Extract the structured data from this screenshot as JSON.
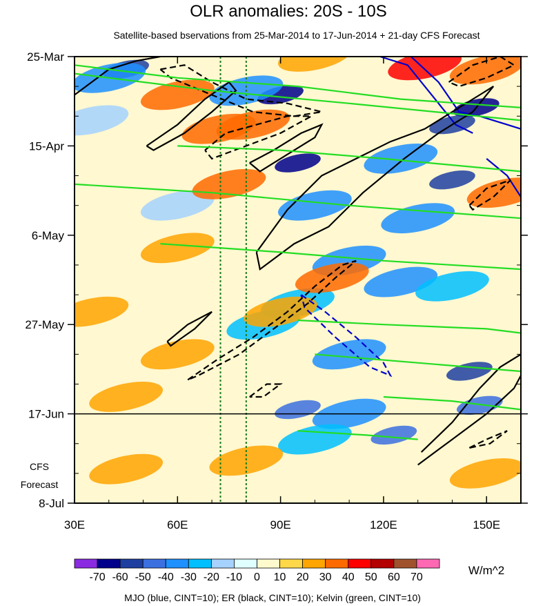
{
  "chart_data": {
    "type": "heatmap",
    "title": "OLR anomalies: 20S - 10S",
    "subtitle": "Satellite-based bservations from 25-Mar-2014 to 17-Jun-2014 + 21-day CFS Forecast",
    "x_ticks": [
      "30E",
      "60E",
      "90E",
      "120E",
      "150E"
    ],
    "x_tick_values": [
      30,
      60,
      90,
      120,
      150
    ],
    "xlim": [
      30,
      160
    ],
    "y_ticks": [
      "25-Mar",
      "15-Apr",
      "6-May",
      "27-May",
      "17-Jun",
      "8-Jul"
    ],
    "y_tick_days": [
      0,
      21,
      42,
      63,
      84,
      105
    ],
    "ylim_days": [
      0,
      105
    ],
    "forecast_label": "CFS\nForecast",
    "forecast_start_day": 84,
    "reference_lines_lon": [
      72.5,
      80
    ],
    "colorbar": {
      "labels": [
        "-70",
        "-60",
        "-50",
        "-40",
        "-30",
        "-20",
        "-10",
        "0",
        "10",
        "20",
        "30",
        "40",
        "50",
        "60",
        "70"
      ],
      "colors": [
        "#8a2be2",
        "#00008b",
        "#1e3fa0",
        "#3c70e0",
        "#1e90ff",
        "#00bfff",
        "#a5d2ff",
        "#e0ffff",
        "#fffacd",
        "#ffd84a",
        "#ffa500",
        "#ff6a00",
        "#ff0000",
        "#b30000",
        "#a0522d",
        "#ff69b4"
      ],
      "units": "W/m^2"
    },
    "cells": [
      {
        "lon": 45,
        "day": 3,
        "v": -60
      },
      {
        "lon": 40,
        "day": 5,
        "v": -40
      },
      {
        "lon": 90,
        "day": 9,
        "v": -70
      },
      {
        "lon": 80,
        "day": 8,
        "v": -40
      },
      {
        "lon": 147,
        "day": 12,
        "v": -70
      },
      {
        "lon": 140,
        "day": 16,
        "v": -60
      },
      {
        "lon": 95,
        "day": 25,
        "v": -70
      },
      {
        "lon": 125,
        "day": 24,
        "v": -40
      },
      {
        "lon": 140,
        "day": 29,
        "v": -60
      },
      {
        "lon": 100,
        "day": 35,
        "v": -40
      },
      {
        "lon": 130,
        "day": 38,
        "v": -40
      },
      {
        "lon": 110,
        "day": 48,
        "v": -40
      },
      {
        "lon": 125,
        "day": 53,
        "v": -40
      },
      {
        "lon": 140,
        "day": 54,
        "v": -30
      },
      {
        "lon": 95,
        "day": 58,
        "v": -30
      },
      {
        "lon": 85,
        "day": 63,
        "v": -30
      },
      {
        "lon": 110,
        "day": 70,
        "v": -40
      },
      {
        "lon": 145,
        "day": 74,
        "v": -60
      },
      {
        "lon": 95,
        "day": 83,
        "v": -50
      },
      {
        "lon": 110,
        "day": 84,
        "v": -40
      },
      {
        "lon": 148,
        "day": 82,
        "v": -50
      },
      {
        "lon": 123,
        "day": 89,
        "v": -50
      },
      {
        "lon": 100,
        "day": 90,
        "v": -30
      },
      {
        "lon": 60,
        "day": 35,
        "v": -20
      },
      {
        "lon": 35,
        "day": 15,
        "v": -20
      },
      {
        "lon": 132,
        "day": 2,
        "v": 40
      },
      {
        "lon": 150,
        "day": 3,
        "v": 30
      },
      {
        "lon": 82,
        "day": 16,
        "v": 30
      },
      {
        "lon": 72,
        "day": 17,
        "v": 30
      },
      {
        "lon": 60,
        "day": 9,
        "v": 30
      },
      {
        "lon": 75,
        "day": 30,
        "v": 30
      },
      {
        "lon": 155,
        "day": 32,
        "v": 30
      },
      {
        "lon": 100,
        "day": 0,
        "v": 20
      },
      {
        "lon": 60,
        "day": 45,
        "v": 20
      },
      {
        "lon": 105,
        "day": 52,
        "v": 30
      },
      {
        "lon": 90,
        "day": 60,
        "v": 20
      },
      {
        "lon": 60,
        "day": 70,
        "v": 20
      },
      {
        "lon": 45,
        "day": 80,
        "v": 20
      },
      {
        "lon": 150,
        "day": 98,
        "v": 20
      },
      {
        "lon": 45,
        "day": 97,
        "v": 20
      },
      {
        "lon": 80,
        "day": 95,
        "v": 20
      },
      {
        "lon": 35,
        "day": 60,
        "v": 20
      }
    ],
    "contours": [
      {
        "series": "MJO",
        "color": "#0000cc",
        "dashed": false,
        "points": [
          [
            119,
            0
          ],
          [
            127,
            2
          ],
          [
            135,
            10
          ],
          [
            141,
            16
          ],
          [
            146,
            18
          ]
        ]
      },
      {
        "series": "MJO",
        "color": "#0000cc",
        "dashed": false,
        "points": [
          [
            128,
            0
          ],
          [
            136,
            6
          ],
          [
            142,
            13
          ],
          [
            148,
            14
          ],
          [
            156,
            16
          ],
          [
            160,
            17
          ]
        ]
      },
      {
        "series": "MJO",
        "color": "#0000cc",
        "dashed": false,
        "points": [
          [
            150,
            24
          ],
          [
            156,
            28
          ],
          [
            160,
            33
          ]
        ]
      },
      {
        "series": "MJO",
        "color": "#0000cc",
        "dashed": true,
        "points": [
          [
            96,
            56
          ],
          [
            103,
            60
          ],
          [
            112,
            66
          ],
          [
            120,
            72
          ],
          [
            122,
            75
          ],
          [
            116,
            73
          ],
          [
            106,
            66
          ],
          [
            97,
            59
          ],
          [
            96,
            56
          ]
        ]
      },
      {
        "series": "ER",
        "color": "#000000",
        "dashed": false,
        "points": [
          [
            30,
            9
          ],
          [
            40,
            3
          ],
          [
            48,
            1
          ],
          [
            55,
            0
          ]
        ]
      },
      {
        "series": "ER",
        "color": "#000000",
        "dashed": false,
        "points": [
          [
            51,
            21
          ],
          [
            60,
            16
          ],
          [
            68,
            10
          ],
          [
            75,
            6
          ],
          [
            77,
            8
          ],
          [
            70,
            13
          ],
          [
            62,
            18
          ],
          [
            53,
            22
          ],
          [
            51,
            21
          ]
        ]
      },
      {
        "series": "ER",
        "color": "#000000",
        "dashed": false,
        "points": [
          [
            81,
            25
          ],
          [
            88,
            22
          ],
          [
            96,
            18
          ],
          [
            102,
            16
          ],
          [
            100,
            19
          ],
          [
            92,
            23
          ],
          [
            84,
            27
          ],
          [
            81,
            25
          ]
        ]
      },
      {
        "series": "ER",
        "color": "#000000",
        "dashed": false,
        "points": [
          [
            83,
            46
          ],
          [
            92,
            36
          ],
          [
            102,
            28
          ],
          [
            112,
            24
          ],
          [
            122,
            20
          ],
          [
            132,
            17
          ],
          [
            140,
            13
          ],
          [
            148,
            9
          ],
          [
            152,
            7
          ],
          [
            146,
            13
          ],
          [
            136,
            18
          ],
          [
            126,
            24
          ],
          [
            114,
            32
          ],
          [
            104,
            40
          ],
          [
            94,
            44
          ],
          [
            84,
            50
          ],
          [
            83,
            46
          ]
        ]
      },
      {
        "series": "ER",
        "color": "#000000",
        "dashed": false,
        "points": [
          [
            57,
            67
          ],
          [
            63,
            63
          ],
          [
            70,
            60
          ],
          [
            65,
            64
          ],
          [
            58,
            68
          ],
          [
            57,
            67
          ]
        ]
      },
      {
        "series": "ER",
        "color": "#000000",
        "dashed": false,
        "points": [
          [
            131,
            93
          ],
          [
            140,
            86
          ],
          [
            148,
            78
          ],
          [
            154,
            73
          ],
          [
            160,
            70
          ]
        ]
      },
      {
        "series": "ER",
        "color": "#000000",
        "dashed": false,
        "points": [
          [
            130,
            96
          ],
          [
            140,
            90
          ],
          [
            150,
            84
          ],
          [
            158,
            78
          ],
          [
            160,
            75
          ]
        ]
      },
      {
        "series": "ER",
        "color": "#000000",
        "dashed": true,
        "points": [
          [
            55,
            3
          ],
          [
            62,
            2
          ],
          [
            70,
            6
          ],
          [
            80,
            10
          ],
          [
            92,
            11
          ],
          [
            102,
            13
          ],
          [
            94,
            14
          ],
          [
            82,
            13
          ],
          [
            70,
            9
          ],
          [
            58,
            5
          ],
          [
            55,
            3
          ]
        ]
      },
      {
        "series": "ER",
        "color": "#000000",
        "dashed": true,
        "points": [
          [
            68,
            22
          ],
          [
            74,
            18
          ],
          [
            83,
            16
          ],
          [
            92,
            14
          ],
          [
            99,
            14
          ],
          [
            90,
            18
          ],
          [
            80,
            21
          ],
          [
            70,
            24
          ],
          [
            68,
            22
          ]
        ]
      },
      {
        "series": "ER",
        "color": "#000000",
        "dashed": true,
        "points": [
          [
            63,
            76
          ],
          [
            72,
            71
          ],
          [
            82,
            66
          ],
          [
            92,
            60
          ],
          [
            100,
            54
          ],
          [
            108,
            49
          ],
          [
            112,
            48
          ],
          [
            106,
            52
          ],
          [
            98,
            58
          ],
          [
            88,
            64
          ],
          [
            78,
            70
          ],
          [
            66,
            75
          ],
          [
            63,
            76
          ]
        ]
      },
      {
        "series": "ER",
        "color": "#000000",
        "dashed": true,
        "points": [
          [
            145,
            35
          ],
          [
            150,
            31
          ],
          [
            157,
            29
          ],
          [
            152,
            33
          ],
          [
            146,
            36
          ],
          [
            145,
            35
          ]
        ]
      },
      {
        "series": "ER",
        "color": "#000000",
        "dashed": true,
        "points": [
          [
            139,
            6
          ],
          [
            146,
            2
          ],
          [
            154,
            0
          ],
          [
            158,
            2
          ],
          [
            150,
            5
          ],
          [
            142,
            7
          ],
          [
            139,
            6
          ]
        ]
      },
      {
        "series": "ER",
        "color": "#000000",
        "dashed": true,
        "points": [
          [
            81,
            80
          ],
          [
            86,
            77
          ],
          [
            90,
            77
          ],
          [
            85,
            80
          ],
          [
            81,
            80
          ]
        ]
      },
      {
        "series": "ER",
        "color": "#000000",
        "dashed": true,
        "points": [
          [
            145,
            92
          ],
          [
            150,
            90
          ],
          [
            156,
            88
          ],
          [
            151,
            91
          ],
          [
            145,
            92
          ]
        ]
      },
      {
        "series": "Kelvin",
        "color": "#22dd22",
        "dashed": false,
        "points": [
          [
            30,
            2
          ],
          [
            60,
            5
          ],
          [
            95,
            7
          ],
          [
            125,
            10
          ],
          [
            160,
            12
          ]
        ]
      },
      {
        "series": "Kelvin",
        "color": "#22dd22",
        "dashed": false,
        "points": [
          [
            30,
            4
          ],
          [
            70,
            8
          ],
          [
            110,
            11
          ],
          [
            160,
            15
          ]
        ]
      },
      {
        "series": "Kelvin",
        "color": "#22dd22",
        "dashed": false,
        "points": [
          [
            60,
            21
          ],
          [
            90,
            22
          ],
          [
            120,
            24
          ],
          [
            160,
            27
          ]
        ]
      },
      {
        "series": "Kelvin",
        "color": "#22dd22",
        "dashed": false,
        "points": [
          [
            30,
            30
          ],
          [
            70,
            32
          ],
          [
            110,
            35
          ],
          [
            160,
            38
          ]
        ]
      },
      {
        "series": "Kelvin",
        "color": "#22dd22",
        "dashed": false,
        "points": [
          [
            55,
            44
          ],
          [
            90,
            46
          ],
          [
            120,
            48
          ],
          [
            160,
            50
          ]
        ]
      },
      {
        "series": "Kelvin",
        "color": "#22dd22",
        "dashed": false,
        "points": [
          [
            95,
            62
          ],
          [
            120,
            63
          ],
          [
            150,
            64
          ],
          [
            160,
            65
          ]
        ]
      },
      {
        "series": "Kelvin",
        "color": "#22dd22",
        "dashed": false,
        "points": [
          [
            100,
            70
          ],
          [
            130,
            72
          ],
          [
            160,
            74
          ]
        ]
      },
      {
        "series": "Kelvin",
        "color": "#22dd22",
        "dashed": false,
        "points": [
          [
            120,
            80
          ],
          [
            140,
            81
          ],
          [
            160,
            83
          ]
        ]
      },
      {
        "series": "Kelvin",
        "color": "#22dd22",
        "dashed": false,
        "points": [
          [
            95,
            88
          ],
          [
            115,
            89
          ],
          [
            130,
            90
          ]
        ]
      }
    ],
    "legend_note": "MJO (blue, CINT=10); ER (black, CINT=10); Kelvin (green, CINT=10)"
  }
}
